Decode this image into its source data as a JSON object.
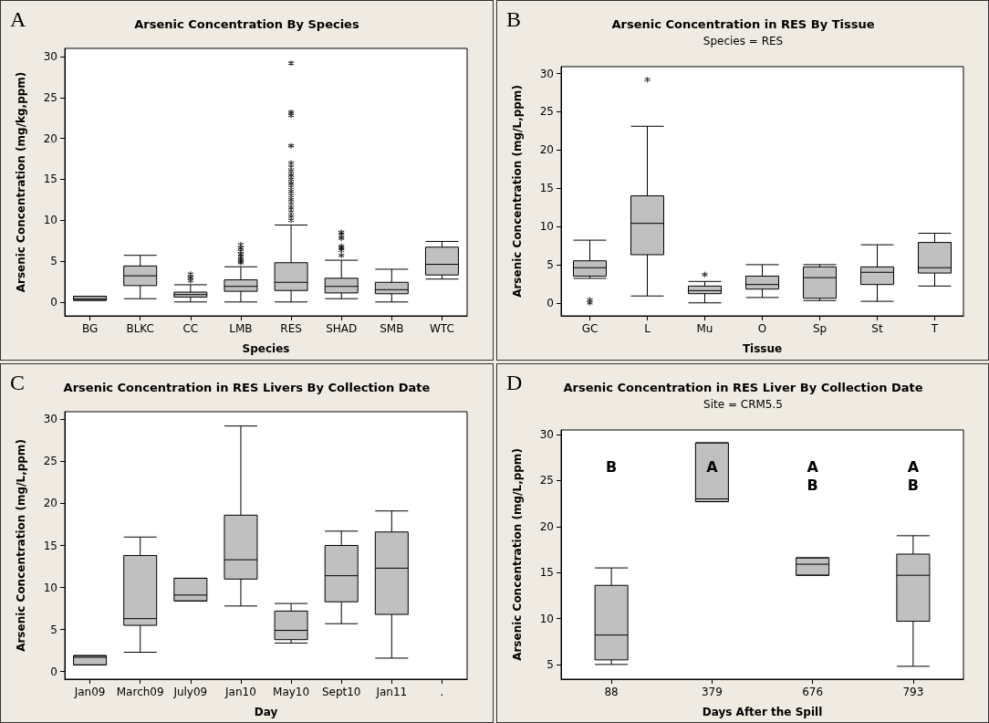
{
  "chart_data": [
    {
      "type": "box",
      "title": "Arsenic Concentration By Species",
      "xlabel": "Species",
      "ylabel": "Arsenic Concentration (mg/kg,ppm)",
      "annotations": [
        "A"
      ],
      "categories": [
        "BG",
        "BLKC",
        "CC",
        "LMB",
        "RES",
        "SHAD",
        "SMB",
        "WTC"
      ],
      "color": "#c0c0c0",
      "ylim": [
        -1.7,
        31
      ],
      "yticks": [
        0,
        5,
        10,
        15,
        20,
        25,
        30
      ],
      "grid": false,
      "boxes": [
        {
          "low": 0.2,
          "q1": 0.2,
          "median": 0.4,
          "q3": 0.7,
          "high": 0.7
        },
        {
          "low": 0.4,
          "q1": 2.0,
          "median": 3.2,
          "q3": 4.4,
          "high": 5.7
        },
        {
          "low": 0.0,
          "q1": 0.6,
          "median": 0.9,
          "q3": 1.2,
          "high": 2.1,
          "outliers": [
            2.6,
            3.0,
            3.4
          ]
        },
        {
          "low": 0.0,
          "q1": 1.3,
          "median": 1.9,
          "q3": 2.7,
          "high": 4.3,
          "outliers": [
            4.8,
            5.0,
            5.2,
            5.5,
            5.8,
            6.2,
            6.6,
            7.0
          ]
        },
        {
          "low": 0.0,
          "q1": 1.4,
          "median": 2.4,
          "q3": 4.8,
          "high": 9.4,
          "outliers": [
            10.0,
            10.5,
            11.0,
            11.5,
            12.0,
            12.5,
            13.0,
            13.5,
            14.0,
            14.5,
            15.0,
            15.5,
            16.0,
            16.5,
            17.0,
            19.1,
            22.8,
            23.2,
            29.2
          ]
        },
        {
          "low": 0.4,
          "q1": 1.1,
          "median": 1.9,
          "q3": 2.9,
          "high": 5.1,
          "outliers": [
            5.7,
            6.3,
            6.6,
            6.8,
            7.8,
            8.2,
            8.5
          ]
        },
        {
          "low": 0.0,
          "q1": 1.0,
          "median": 1.5,
          "q3": 2.4,
          "high": 4.0
        },
        {
          "low": 2.8,
          "q1": 3.3,
          "median": 4.6,
          "q3": 6.7,
          "high": 7.4
        }
      ]
    },
    {
      "type": "box",
      "title": "Arsenic Concentration in RES By Tissue",
      "subtitle": "Species = RES",
      "xlabel": "Tissue",
      "ylabel": "Arsenic Concentration (mg/L,ppm)",
      "annotations": [
        "B"
      ],
      "categories": [
        "GC",
        "L",
        "Mu",
        "O",
        "Sp",
        "St",
        "T"
      ],
      "color": "#c0c0c0",
      "ylim": [
        -1.7,
        30.9
      ],
      "yticks": [
        0,
        5,
        10,
        15,
        20,
        25,
        30
      ],
      "grid": false,
      "boxes": [
        {
          "low": 3.2,
          "q1": 3.5,
          "median": 4.6,
          "q3": 5.5,
          "high": 8.2,
          "outliers": [
            0.0,
            0.4
          ]
        },
        {
          "low": 0.9,
          "q1": 6.3,
          "median": 10.4,
          "q3": 14.0,
          "high": 23.1,
          "outliers": [
            29.2
          ]
        },
        {
          "low": 0.0,
          "q1": 1.2,
          "median": 1.6,
          "q3": 2.2,
          "high": 2.8,
          "outliers": [
            3.7
          ]
        },
        {
          "low": 0.7,
          "q1": 1.8,
          "median": 2.4,
          "q3": 3.5,
          "high": 5.0
        },
        {
          "low": 0.3,
          "q1": 0.6,
          "median": 3.3,
          "q3": 4.7,
          "high": 5.0
        },
        {
          "low": 0.2,
          "q1": 2.4,
          "median": 4.0,
          "q3": 4.7,
          "high": 7.6
        },
        {
          "low": 2.2,
          "q1": 3.9,
          "median": 4.6,
          "q3": 7.9,
          "high": 9.1
        }
      ]
    },
    {
      "type": "box",
      "title": "Arsenic Concentration in RES Livers By Collection Date",
      "xlabel": "Day",
      "ylabel": "Arsenic Concentration (mg/L,ppm)",
      "annotations": [
        "C"
      ],
      "categories": [
        "Jan09",
        "March09",
        "July09",
        "Jan10",
        "May10",
        "Sept10",
        "Jan11",
        "."
      ],
      "color": "#c0c0c0",
      "ylim": [
        -0.9,
        30.9
      ],
      "yticks": [
        0,
        5,
        10,
        15,
        20,
        25,
        30
      ],
      "grid": false,
      "boxes": [
        {
          "low": 0.8,
          "q1": 0.8,
          "median": 1.7,
          "q3": 1.9,
          "high": 1.9
        },
        {
          "low": 2.3,
          "q1": 5.5,
          "median": 6.3,
          "q3": 13.8,
          "high": 16.0
        },
        {
          "low": 8.4,
          "q1": 8.4,
          "median": 9.1,
          "q3": 11.1,
          "high": 11.1
        },
        {
          "low": 7.8,
          "q1": 11.0,
          "median": 13.3,
          "q3": 18.6,
          "high": 29.2
        },
        {
          "low": 3.4,
          "q1": 3.8,
          "median": 4.9,
          "q3": 7.2,
          "high": 8.1
        },
        {
          "low": 5.7,
          "q1": 8.3,
          "median": 11.4,
          "q3": 15.0,
          "high": 16.7
        },
        {
          "low": 1.6,
          "q1": 6.8,
          "median": 12.3,
          "q3": 16.6,
          "high": 19.1
        },
        null
      ]
    },
    {
      "type": "box",
      "title": "Arsenic Concentration in RES Liver By Collection Date",
      "subtitle": "Site = CRM5.5",
      "xlabel": "Days After the Spill",
      "ylabel": "Arsenic Concentration (mg/L,ppm)",
      "annotations": [
        "D",
        "B",
        "A",
        "A\nB",
        "A\nB"
      ],
      "categories": [
        "88",
        "379",
        "676",
        "793"
      ],
      "color": "#c0c0c0",
      "ylim": [
        3.4,
        30.5
      ],
      "yticks": [
        5,
        10,
        15,
        20,
        25,
        30
      ],
      "grid": false,
      "boxes": [
        {
          "low": 5.0,
          "q1": 5.5,
          "median": 8.2,
          "q3": 13.6,
          "high": 15.5
        },
        {
          "low": 22.7,
          "q1": 22.7,
          "median": 23.0,
          "q3": 29.1,
          "high": 29.1
        },
        {
          "low": 14.7,
          "q1": 14.7,
          "median": 15.9,
          "q3": 16.6,
          "high": 16.6
        },
        {
          "low": 4.8,
          "q1": 9.7,
          "median": 14.7,
          "q3": 17.0,
          "high": 19.0
        }
      ]
    }
  ]
}
